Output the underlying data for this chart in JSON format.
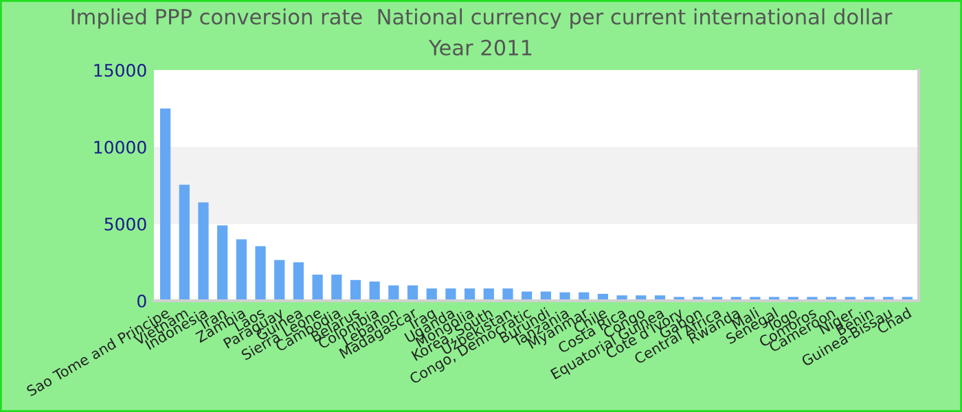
{
  "chart_data": {
    "type": "bar",
    "title": "Implied PPP conversion rate  National currency per current international dollar",
    "subtitle": "Year 2011",
    "categories": [
      "Sao Tome and Principe",
      "Vietnam",
      "Indonesia",
      "Iran",
      "Zambia",
      "Laos",
      "Paraguay",
      "Guinea",
      "Sierra Leone",
      "Cambodia",
      "Belarus",
      "Colombia",
      "Lebanon",
      "Madagascar",
      "Iraq",
      "Uganda",
      "Mongolia",
      "Korea, South",
      "Uzbekistan",
      "Congo, Democratic",
      "Burundi",
      "Tanzania",
      "Myanmar",
      "Chile",
      "Costa Rica",
      "Congo",
      "Equatorial Guinea",
      "Cote d'Ivory",
      "Gabon",
      "Central Africa",
      "Rwanda",
      "Mali",
      "Senegal",
      "Togo",
      "Comoros",
      "Cameroon",
      "Niger",
      "Benin",
      "Guinea-Bissau",
      "Chad"
    ],
    "values": [
      12500,
      7550,
      6400,
      4900,
      4000,
      3550,
      2650,
      2500,
      1700,
      1700,
      1350,
      1250,
      1000,
      1000,
      800,
      800,
      800,
      800,
      800,
      600,
      600,
      550,
      550,
      450,
      350,
      350,
      350,
      250,
      250,
      250,
      250,
      250,
      250,
      250,
      250,
      250,
      250,
      250,
      250,
      250
    ],
    "color": "#64a8f4",
    "ylim": [
      0,
      15000
    ],
    "yticks": [
      0,
      5000,
      10000,
      15000
    ],
    "bands": [
      {
        "axis": "y",
        "from": 5000,
        "to": 10000,
        "color": "#f2f2f2"
      }
    ],
    "grid": false,
    "legend": false
  }
}
